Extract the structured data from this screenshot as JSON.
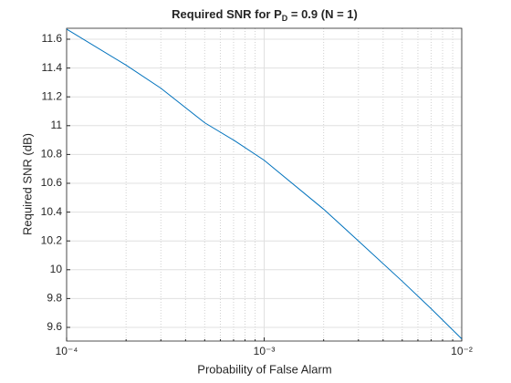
{
  "chart_data": {
    "type": "line",
    "title": [
      "Required  SNR  for  P",
      "D",
      "  =  0.9  (N  =  1)"
    ],
    "xlabel": "Probability of False Alarm",
    "ylabel": "Required SNR (dB)",
    "x": [
      0.0001,
      0.0002,
      0.0003,
      0.0005,
      0.0007,
      0.001,
      0.002,
      0.003,
      0.005,
      0.007,
      0.01
    ],
    "series": [
      {
        "color": "#0072bd",
        "values": [
          11.67,
          11.42,
          11.26,
          11.02,
          10.9,
          10.76,
          10.42,
          10.2,
          9.92,
          9.73,
          9.52
        ]
      }
    ],
    "xscale": "log",
    "xlim": [
      0.0001,
      0.01
    ],
    "xticks": [
      {
        "value": 0.0001,
        "label": "10⁻⁴"
      },
      {
        "value": 0.001,
        "label": "10⁻³"
      },
      {
        "value": 0.01,
        "label": "10⁻²"
      }
    ],
    "xminorticks": [
      0.0002,
      0.0003,
      0.0004,
      0.0005,
      0.0006,
      0.0007,
      0.0008,
      0.0009,
      0.002,
      0.003,
      0.004,
      0.005,
      0.006,
      0.007,
      0.008,
      0.009
    ],
    "ylim": [
      9.505,
      11.676
    ],
    "yticks": [
      9.6,
      9.8,
      10,
      10.2,
      10.4,
      10.6,
      10.8,
      11,
      11.2,
      11.4,
      11.6
    ],
    "grid": true
  }
}
